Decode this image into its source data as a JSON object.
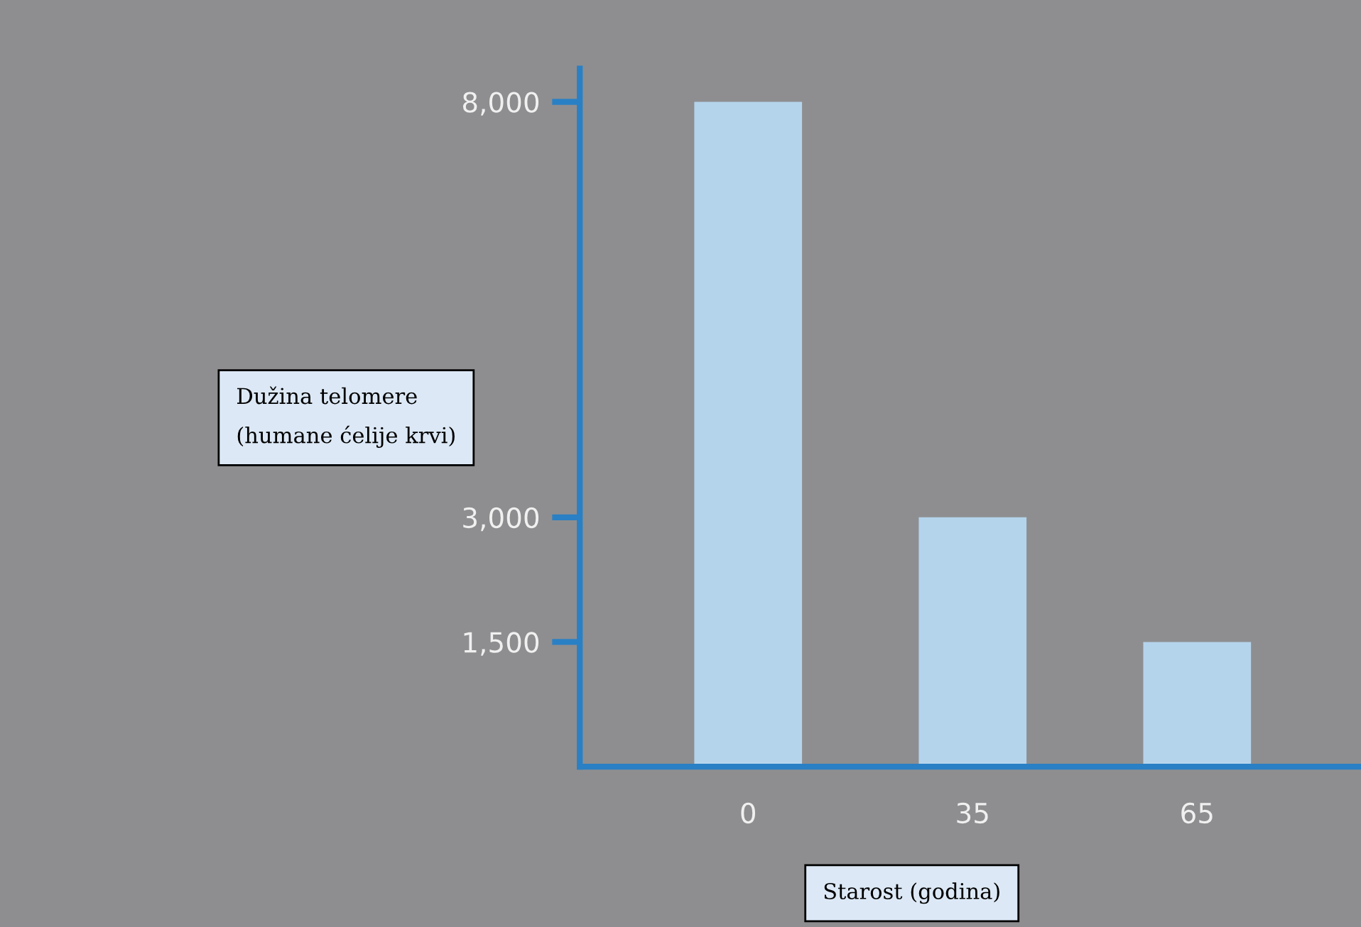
{
  "chart_data": {
    "type": "bar",
    "xlabel": "Starost (godina)",
    "ylabel": "Dužina telomere\n(humane ćelije krvi)",
    "categories": [
      "0",
      "35",
      "65"
    ],
    "values": [
      8000,
      3000,
      1500
    ],
    "color": "#b4d4ec",
    "ylim": [
      0,
      8400
    ],
    "yticks": [
      {
        "value": 1500,
        "label": "1,500"
      },
      {
        "value": 3000,
        "label": "3,000"
      },
      {
        "value": 8000,
        "label": "8,000"
      }
    ],
    "grid": false,
    "legend": false
  }
}
